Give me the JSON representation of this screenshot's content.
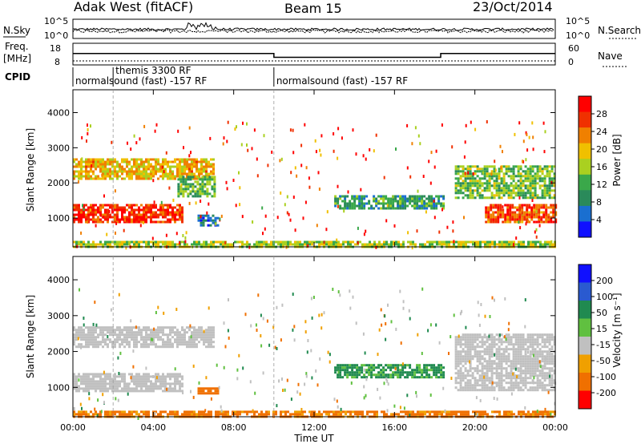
{
  "header": {
    "station": "Adak West (fitACF)",
    "beam": "Beam 15",
    "date": "23/Oct/2014"
  },
  "status_panels": {
    "nsky_label": "N.Sky",
    "nsearch_label": "N.Search",
    "noise_left_ticks": [
      "10^5",
      "10^0"
    ],
    "noise_right_ticks": [
      "10^5",
      "10^0"
    ],
    "freq_label_1": "Freq.",
    "freq_label_2": "[MHz]",
    "freq_ticks": [
      "18",
      "8"
    ],
    "nave_label": "Nave",
    "nave_ticks": [
      "60",
      "0"
    ],
    "cpid_label": "CPID",
    "cpid_segments": [
      {
        "start_hour": 0.0,
        "end_hour": 10.0,
        "text": "normalsound (fast) -157 RF"
      },
      {
        "start_hour": 2.0,
        "end_hour": 10.0,
        "text": "themis 3300 RF"
      },
      {
        "start_hour": 10.0,
        "end_hour": 24.0,
        "text": "normalsound (fast) -157 RF"
      }
    ],
    "freq_steps": [
      {
        "start_hour": 0.0,
        "end_hour": 10.0,
        "mhz": 14.5
      },
      {
        "start_hour": 10.0,
        "end_hour": 18.3,
        "mhz": 12.3
      },
      {
        "start_hour": 18.3,
        "end_hour": 24.0,
        "mhz": 14.5
      }
    ]
  },
  "chart_data": [
    {
      "type": "heatmap",
      "panel": "power",
      "ylabel": "Slant Range [km]",
      "xlabel": "Time UT",
      "xlim_hours": [
        0,
        24
      ],
      "ylim_km": [
        180,
        4650
      ],
      "xticks": [
        "00:00",
        "04:00",
        "08:00",
        "12:00",
        "16:00",
        "20:00",
        "00:00"
      ],
      "xtick_hours": [
        0,
        4,
        8,
        12,
        16,
        20,
        24
      ],
      "yticks": [
        1000,
        2000,
        3000,
        4000
      ],
      "colorbar": {
        "label": "Power [dB]",
        "ticks": [
          4,
          8,
          12,
          16,
          20,
          24,
          28
        ],
        "range": [
          0,
          32
        ],
        "colors": [
          "#1010ff",
          "#1a6fd0",
          "#2a8a5a",
          "#3aa84a",
          "#aad020",
          "#f0c000",
          "#f08000",
          "#f03000",
          "#ff0000"
        ]
      },
      "regions": [
        {
          "t0": 0.0,
          "t1": 5.5,
          "r0": 900,
          "r1": 1400,
          "value": 28
        },
        {
          "t0": 0.0,
          "t1": 7.0,
          "r0": 2100,
          "r1": 2700,
          "value": 20
        },
        {
          "t0": 5.2,
          "t1": 7.0,
          "r0": 1600,
          "r1": 2200,
          "value": 12
        },
        {
          "t0": 6.2,
          "t1": 7.2,
          "r0": 800,
          "r1": 1100,
          "value": 6
        },
        {
          "t0": 13.0,
          "t1": 18.5,
          "r0": 1300,
          "r1": 1650,
          "value": 10
        },
        {
          "t0": 19.0,
          "t1": 24.0,
          "r0": 1600,
          "r1": 2500,
          "value": 14
        },
        {
          "t0": 20.5,
          "t1": 24.0,
          "r0": 900,
          "r1": 1400,
          "value": 26
        },
        {
          "t0": 0.0,
          "t1": 24.0,
          "r0": 180,
          "r1": 350,
          "value": 16
        }
      ]
    },
    {
      "type": "heatmap",
      "panel": "velocity",
      "ylabel": "Slant Range [km]",
      "xlabel": "Time UT",
      "xlim_hours": [
        0,
        24
      ],
      "ylim_km": [
        180,
        4650
      ],
      "xticks": [
        "00:00",
        "04:00",
        "08:00",
        "12:00",
        "16:00",
        "20:00",
        "00:00"
      ],
      "xtick_hours": [
        0,
        4,
        8,
        12,
        16,
        20,
        24
      ],
      "yticks": [
        1000,
        2000,
        3000,
        4000
      ],
      "colorbar": {
        "label": "Velocity [m s⁻¹]",
        "ticks": [
          200,
          100,
          50,
          15,
          -15,
          -50,
          -100,
          -200
        ],
        "colors": [
          "#1010ff",
          "#2a5ad0",
          "#208a50",
          "#60c040",
          "#c0c0c0",
          "#f0a000",
          "#f07000",
          "#ff0000"
        ]
      },
      "regions": [
        {
          "t0": 0.0,
          "t1": 5.5,
          "r0": 900,
          "r1": 1400,
          "value": 0
        },
        {
          "t0": 0.0,
          "t1": 7.0,
          "r0": 2100,
          "r1": 2700,
          "value": 0
        },
        {
          "t0": 6.2,
          "t1": 7.2,
          "r0": 800,
          "r1": 1000,
          "value": -60
        },
        {
          "t0": 13.0,
          "t1": 18.5,
          "r0": 1300,
          "r1": 1650,
          "value": 40
        },
        {
          "t0": 19.0,
          "t1": 24.0,
          "r0": 900,
          "r1": 2500,
          "value": 0
        },
        {
          "t0": 0.0,
          "t1": 24.0,
          "r0": 180,
          "r1": 350,
          "value": -40
        }
      ]
    }
  ]
}
